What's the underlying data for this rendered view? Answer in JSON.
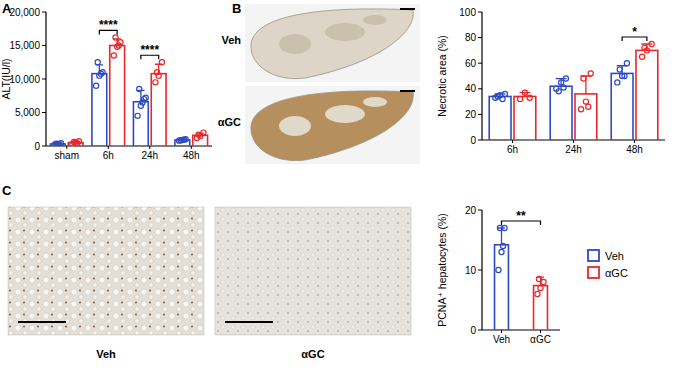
{
  "chart_data": [
    {
      "type": "bar",
      "panel": "A",
      "y_label": "ALT(IU/l)",
      "categories": [
        "sham",
        "6h",
        "24h",
        "48h"
      ],
      "ylim": [
        0,
        20000
      ],
      "yticks": [
        0,
        {
          "value": 5000,
          "label": "5,000"
        },
        {
          "value": 10000,
          "label": "10,000"
        },
        {
          "value": 15000,
          "label": "15,000"
        },
        {
          "value": 20000,
          "label": "20,000"
        }
      ],
      "series": [
        {
          "name": "Veh",
          "color": "#2e4bc6",
          "values": [
            300,
            10800,
            6600,
            900
          ],
          "errors": [
            90,
            1300,
            1700,
            90
          ],
          "points": [
            [
              200,
              300,
              400,
              350,
              250
            ],
            [
              9000,
              10500,
              11000,
              12500,
              10800
            ],
            [
              4500,
              6000,
              7000,
              8500,
              6500,
              7200
            ],
            [
              800,
              900,
              1000,
              850,
              950
            ]
          ]
        },
        {
          "name": "αGC",
          "color": "#e8282b",
          "values": [
            500,
            15000,
            10800,
            1600
          ],
          "errors": [
            160,
            1000,
            1400,
            330
          ],
          "points": [
            [
              300,
              500,
              700,
              600,
              400
            ],
            [
              13500,
              14800,
              15500,
              16200,
              15000
            ],
            [
              9500,
              10500,
              12500,
              11000
            ],
            [
              1200,
              1500,
              2000,
              1700
            ]
          ]
        }
      ],
      "annotations": [
        {
          "text": "****",
          "categories": [
            1
          ]
        },
        {
          "text": "****",
          "categories": [
            2
          ]
        }
      ]
    },
    {
      "type": "bar",
      "panel": "B",
      "y_label": "Necrotic area (%)",
      "image_labels": [
        "Veh",
        "αGC"
      ],
      "categories": [
        "6h",
        "24h",
        "48h"
      ],
      "ylim": [
        0,
        100
      ],
      "yticks": [
        0,
        20,
        40,
        60,
        80,
        100
      ],
      "series": [
        {
          "name": "Veh",
          "color": "#2e4bc6",
          "values": [
            34,
            42,
            52
          ],
          "errors": [
            2,
            6,
            6
          ],
          "points": [
            [
              33,
              35,
              36,
              34,
              32
            ],
            [
              40,
              45,
              48,
              38,
              41
            ],
            [
              45,
              50,
              60,
              55,
              50
            ]
          ]
        },
        {
          "name": "αGC",
          "color": "#e8282b",
          "values": [
            34,
            36,
            70
          ],
          "errors": [
            3,
            14,
            5
          ],
          "points": [
            [
              32,
              37,
              33
            ],
            [
              24,
              30,
              52,
              48,
              26
            ],
            [
              65,
              70,
              75,
              72
            ]
          ]
        }
      ],
      "annotations": [
        {
          "text": "*",
          "categories": [
            2
          ]
        }
      ]
    },
    {
      "type": "bar",
      "panel": "C",
      "y_label": "PCNA⁺ hepatocytes (%)",
      "image_labels": [
        "Veh",
        "αGC"
      ],
      "categories": [
        "Veh",
        "αGC"
      ],
      "ylim": [
        0,
        20
      ],
      "yticks": [
        0,
        10,
        20
      ],
      "legend": "right",
      "series": [
        {
          "name": "Veh",
          "color": "#2e4bc6",
          "values": [
            14.2,
            null
          ],
          "errors": [
            2.8,
            null
          ],
          "points": [
            [
              10,
              13,
              17,
              17,
              14
            ],
            []
          ]
        },
        {
          "name": "αGC",
          "color": "#e8282b",
          "values": [
            null,
            7.4
          ],
          "errors": [
            null,
            1.4
          ],
          "points": [
            [],
            [
              6,
              7,
              8,
              8.5
            ]
          ]
        }
      ],
      "annotations": [
        {
          "text": "**",
          "categories": [
            0,
            1
          ]
        }
      ]
    }
  ]
}
